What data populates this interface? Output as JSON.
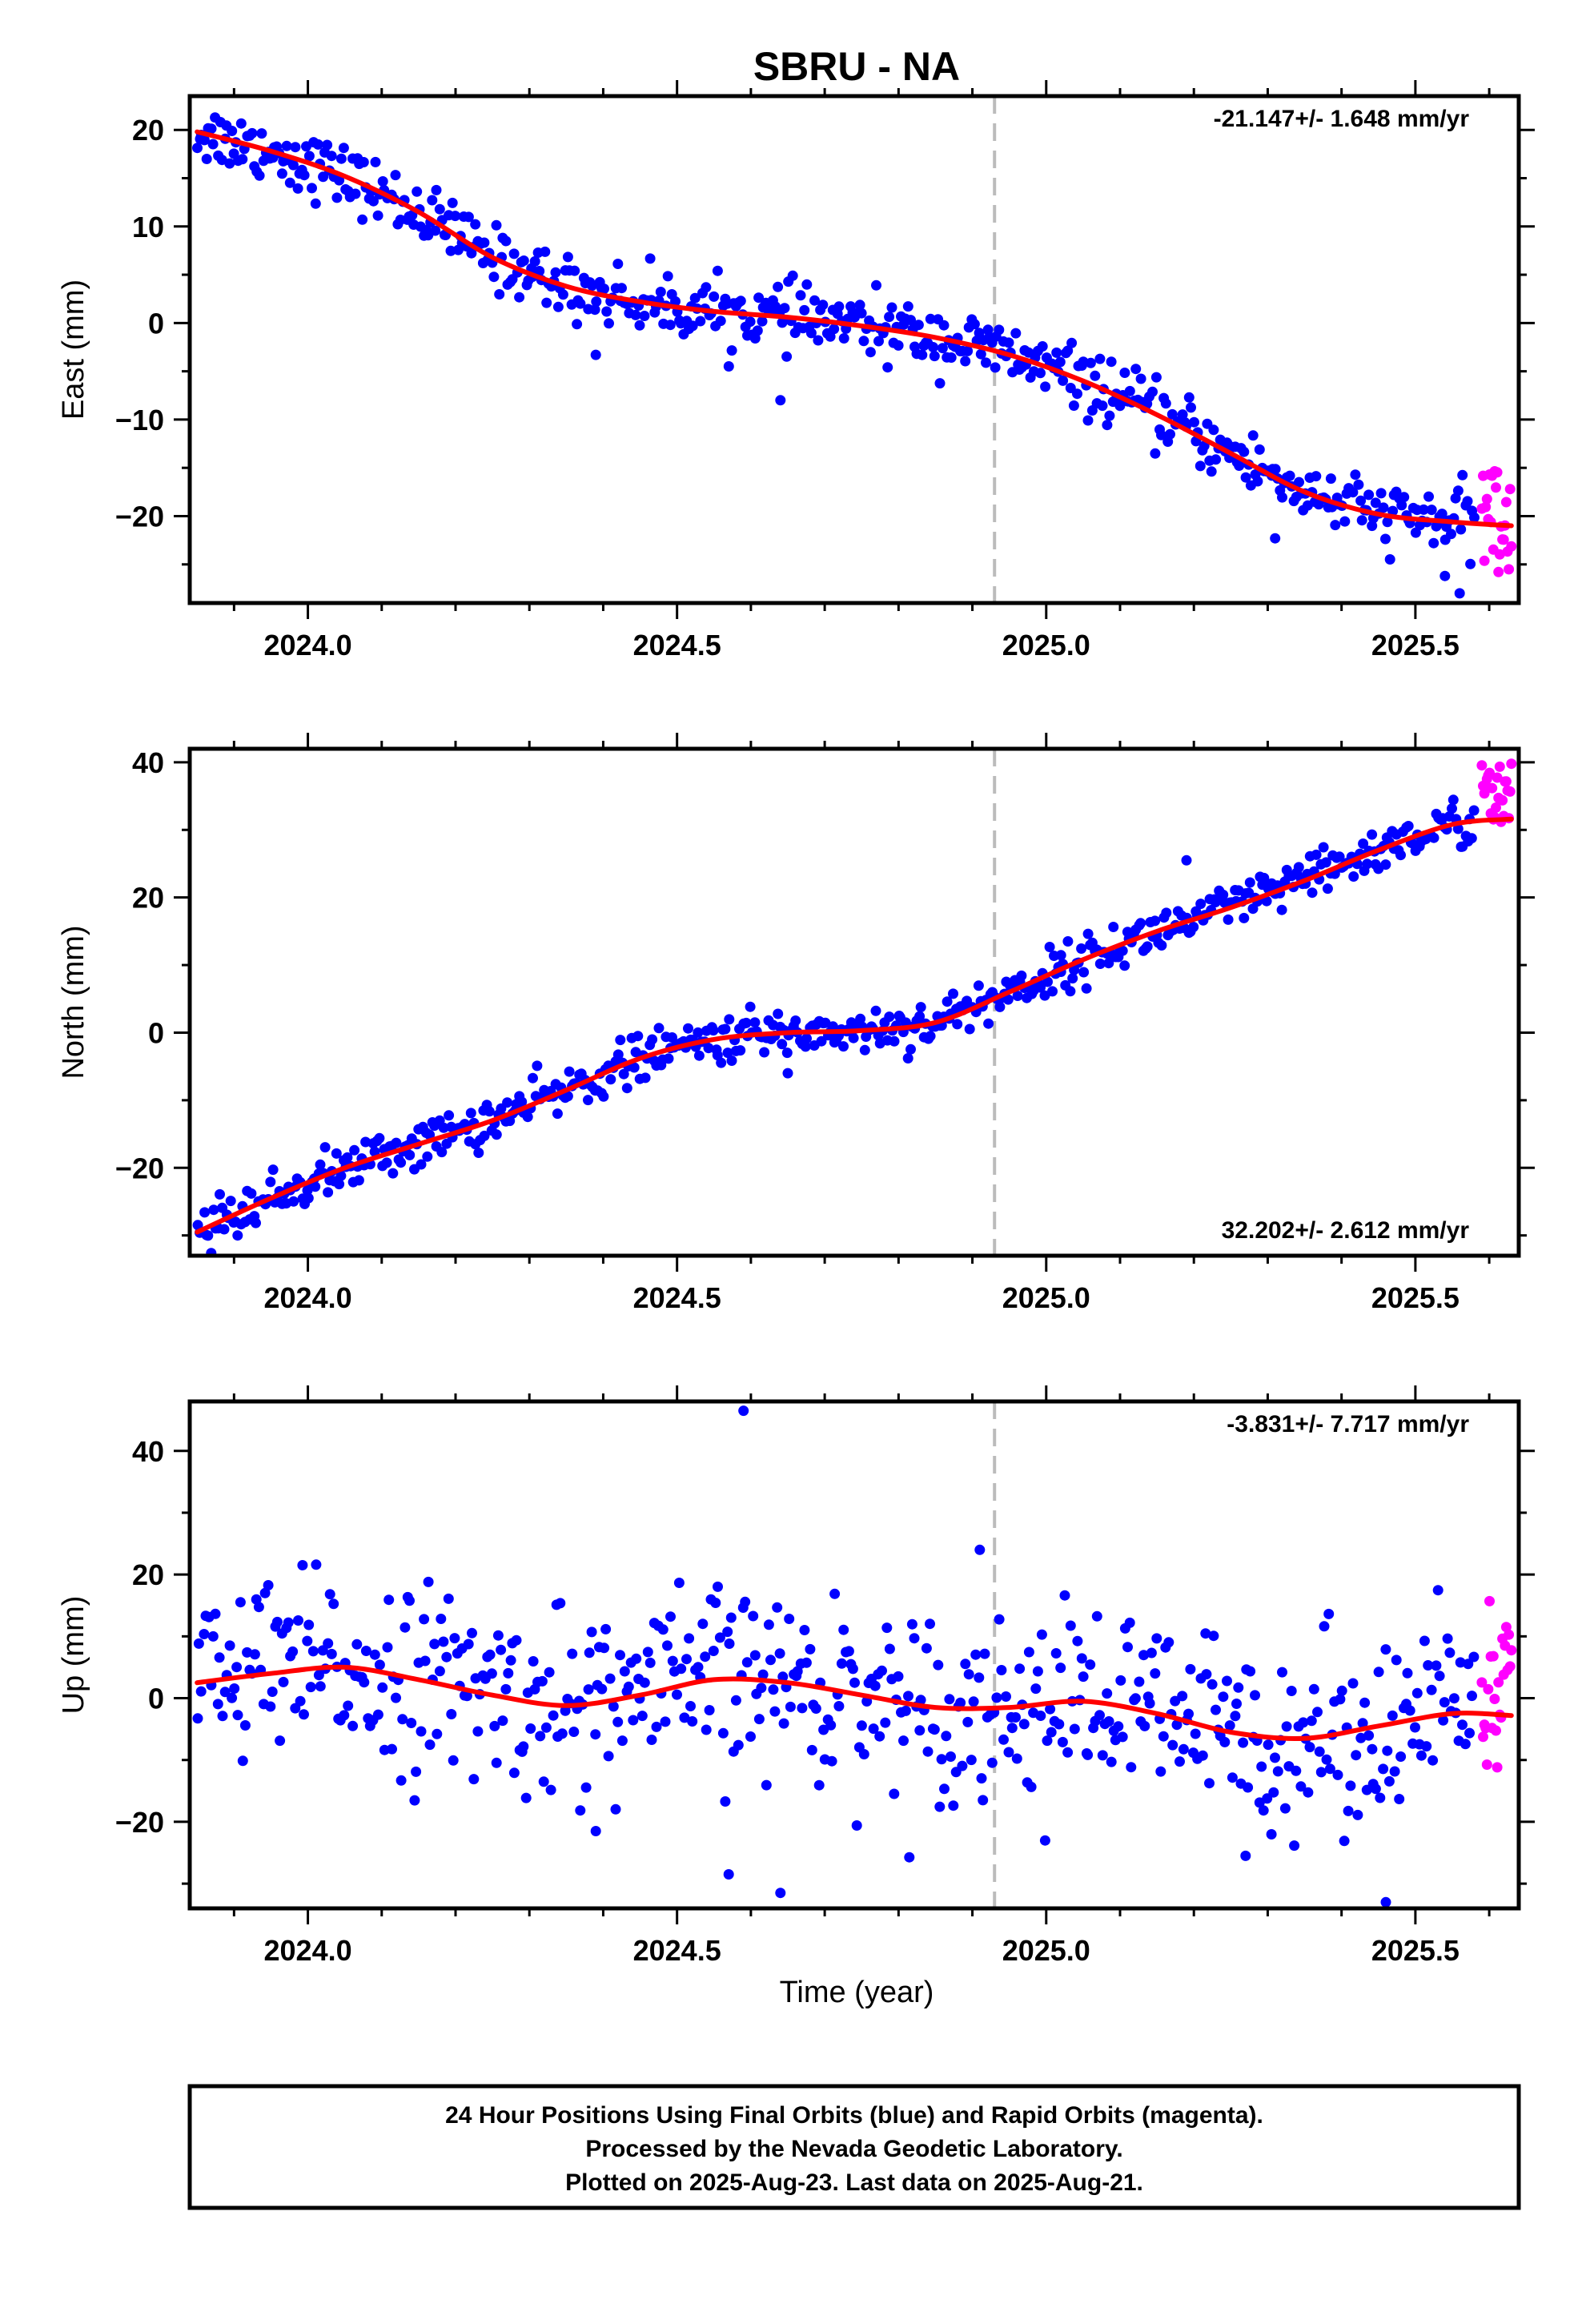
{
  "title": "SBRU - NA",
  "x_label": "Time (year)",
  "footer": {
    "line1": "24 Hour Positions Using Final Orbits (blue) and Rapid Orbits (magenta).",
    "line2": "Processed by the Nevada Geodetic Laboratory.",
    "line3": "Plotted on 2025-Aug-23. Last data on 2025-Aug-21."
  },
  "colors": {
    "final": "#0000ff",
    "rapid": "#ff00ff",
    "model": "#ff0000",
    "divider": "#bbbbbb"
  },
  "chart_data": [
    {
      "type": "scatter",
      "name": "east",
      "ylabel": "East (mm)",
      "rate_label": "-21.147+/- 1.648 mm/yr",
      "rate_position": "top-right",
      "xlim": [
        2023.84,
        2025.64
      ],
      "ylim": [
        -29,
        23.5
      ],
      "xticks": [
        "2024.0",
        "2024.5",
        "2025.0",
        "2025.5"
      ],
      "xtick_values": [
        2024.0,
        2024.5,
        2025.0,
        2025.5
      ],
      "yticks": [
        "−20",
        "−10",
        "0",
        "10",
        "20"
      ],
      "ytick_values": [
        -20,
        -10,
        0,
        10,
        20
      ],
      "divider_x": 2024.93,
      "model_curve": {
        "x": [
          2023.85,
          2023.95,
          2024.05,
          2024.15,
          2024.25,
          2024.35,
          2024.45,
          2024.55,
          2024.65,
          2024.75,
          2024.85,
          2024.95,
          2025.05,
          2025.15,
          2025.25,
          2025.35,
          2025.45,
          2025.55,
          2025.63
        ],
        "y": [
          19.8,
          17.8,
          15.2,
          11.5,
          6.8,
          3.8,
          2.2,
          1.2,
          0.6,
          -0.3,
          -1.5,
          -3.3,
          -6.0,
          -9.5,
          -13.5,
          -17.5,
          -19.8,
          -20.6,
          -21.0
        ]
      },
      "final": {
        "x_start": 2023.85,
        "x_end": 2025.58,
        "outliers": [
          [
            2024.39,
            -3.3
          ],
          [
            2024.64,
            -8.0
          ],
          [
            2025.31,
            -22.3
          ],
          [
            2025.56,
            -28.0
          ],
          [
            2025.54,
            -26.2
          ]
        ]
      },
      "rapid": {
        "x_start": 2025.59,
        "x_end": 2025.63,
        "y_center": -21,
        "y_spread": 6
      }
    },
    {
      "type": "scatter",
      "name": "north",
      "ylabel": "North (mm)",
      "rate_label": "32.202+/- 2.612 mm/yr",
      "rate_position": "bottom-right",
      "xlim": [
        2023.84,
        2025.64
      ],
      "ylim": [
        -33,
        42
      ],
      "xticks": [
        "2024.0",
        "2024.5",
        "2025.0",
        "2025.5"
      ],
      "xtick_values": [
        2024.0,
        2024.5,
        2025.0,
        2025.5
      ],
      "yticks": [
        "−20",
        "0",
        "20",
        "40"
      ],
      "ytick_values": [
        -20,
        0,
        20,
        40
      ],
      "divider_x": 2024.93,
      "model_curve": {
        "x": [
          2023.85,
          2023.95,
          2024.05,
          2024.15,
          2024.25,
          2024.35,
          2024.45,
          2024.55,
          2024.65,
          2024.75,
          2024.85,
          2024.95,
          2025.05,
          2025.15,
          2025.25,
          2025.35,
          2025.45,
          2025.55,
          2025.63
        ],
        "y": [
          -29.5,
          -24.5,
          -20.0,
          -16.5,
          -13.0,
          -8.5,
          -3.8,
          -1.0,
          0.0,
          0.3,
          1.5,
          6.0,
          10.8,
          15.0,
          18.5,
          22.5,
          27.0,
          30.8,
          31.6
        ]
      },
      "final": {
        "x_start": 2023.85,
        "x_end": 2025.58,
        "outliers": [
          [
            2024.65,
            -6.0
          ],
          [
            2025.19,
            25.5
          ],
          [
            2025.02,
            9.0
          ]
        ]
      },
      "rapid": {
        "x_start": 2025.59,
        "x_end": 2025.63,
        "y_center": 35,
        "y_spread": 5
      }
    },
    {
      "type": "scatter",
      "name": "up",
      "ylabel": "Up (mm)",
      "rate_label": "-3.831+/- 7.717 mm/yr",
      "rate_position": "top-right",
      "xlim": [
        2023.84,
        2025.64
      ],
      "ylim": [
        -34,
        48
      ],
      "xticks": [
        "2024.0",
        "2024.5",
        "2025.0",
        "2025.5"
      ],
      "xtick_values": [
        2024.0,
        2024.5,
        2025.0,
        2025.5
      ],
      "yticks": [
        "−20",
        "0",
        "20",
        "40"
      ],
      "ytick_values": [
        -20,
        0,
        20,
        40
      ],
      "divider_x": 2024.93,
      "model_curve": {
        "x": [
          2023.85,
          2023.95,
          2024.05,
          2024.15,
          2024.25,
          2024.35,
          2024.45,
          2024.55,
          2024.65,
          2024.75,
          2024.85,
          2024.95,
          2025.05,
          2025.15,
          2025.25,
          2025.35,
          2025.45,
          2025.55,
          2025.63
        ],
        "y": [
          2.5,
          4.0,
          5.0,
          3.0,
          0.5,
          -1.2,
          0.5,
          3.0,
          2.5,
          0.5,
          -1.5,
          -1.5,
          -0.5,
          -2.5,
          -5.5,
          -6.5,
          -4.5,
          -2.5,
          -2.8
        ]
      },
      "final": {
        "x_start": 2023.85,
        "x_end": 2025.58,
        "outliers": [
          [
            2024.59,
            46.5
          ],
          [
            2024.91,
            24.0
          ],
          [
            2024.57,
            -28.5
          ],
          [
            2024.64,
            -31.5
          ],
          [
            2025.46,
            -33.0
          ],
          [
            2024.39,
            -21.5
          ],
          [
            2025.27,
            -25.5
          ]
        ]
      },
      "rapid": {
        "x_start": 2025.59,
        "x_end": 2025.63,
        "y_center": 2,
        "y_spread": 14
      }
    }
  ]
}
